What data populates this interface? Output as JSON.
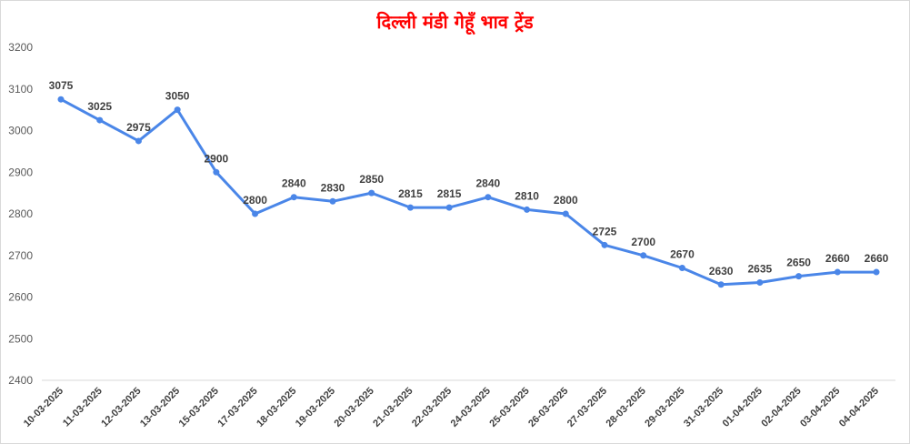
{
  "chart_data": {
    "type": "line",
    "title": "दिल्ली मंडी गेहूँ भाव ट्रेंड",
    "xlabel": "",
    "ylabel": "",
    "categories": [
      "10-03-2025",
      "11-03-2025",
      "12-03-2025",
      "13-03-2025",
      "15-03-2025",
      "17-03-2025",
      "18-03-2025",
      "19-03-2025",
      "20-03-2025",
      "21-03-2025",
      "22-03-2025",
      "24-03-2025",
      "25-03-2025",
      "26-03-2025",
      "27-03-2025",
      "28-03-2025",
      "29-03-2025",
      "31-03-2025",
      "01-04-2025",
      "02-04-2025",
      "03-04-2025",
      "04-04-2025"
    ],
    "series": [
      {
        "values": [
          3075,
          3025,
          2975,
          3050,
          2900,
          2800,
          2840,
          2830,
          2850,
          2815,
          2815,
          2840,
          2810,
          2800,
          2725,
          2700,
          2670,
          2630,
          2635,
          2650,
          2660,
          2660
        ]
      }
    ],
    "ylim": [
      2400,
      3200
    ],
    "yticks": [
      2400,
      2500,
      2600,
      2700,
      2800,
      2900,
      3000,
      3100,
      3200
    ],
    "grid": false,
    "data_labels": true,
    "colors": {
      "title": "#ff0000",
      "line": "#4a86e8",
      "axis": "#d9d9d9"
    }
  }
}
